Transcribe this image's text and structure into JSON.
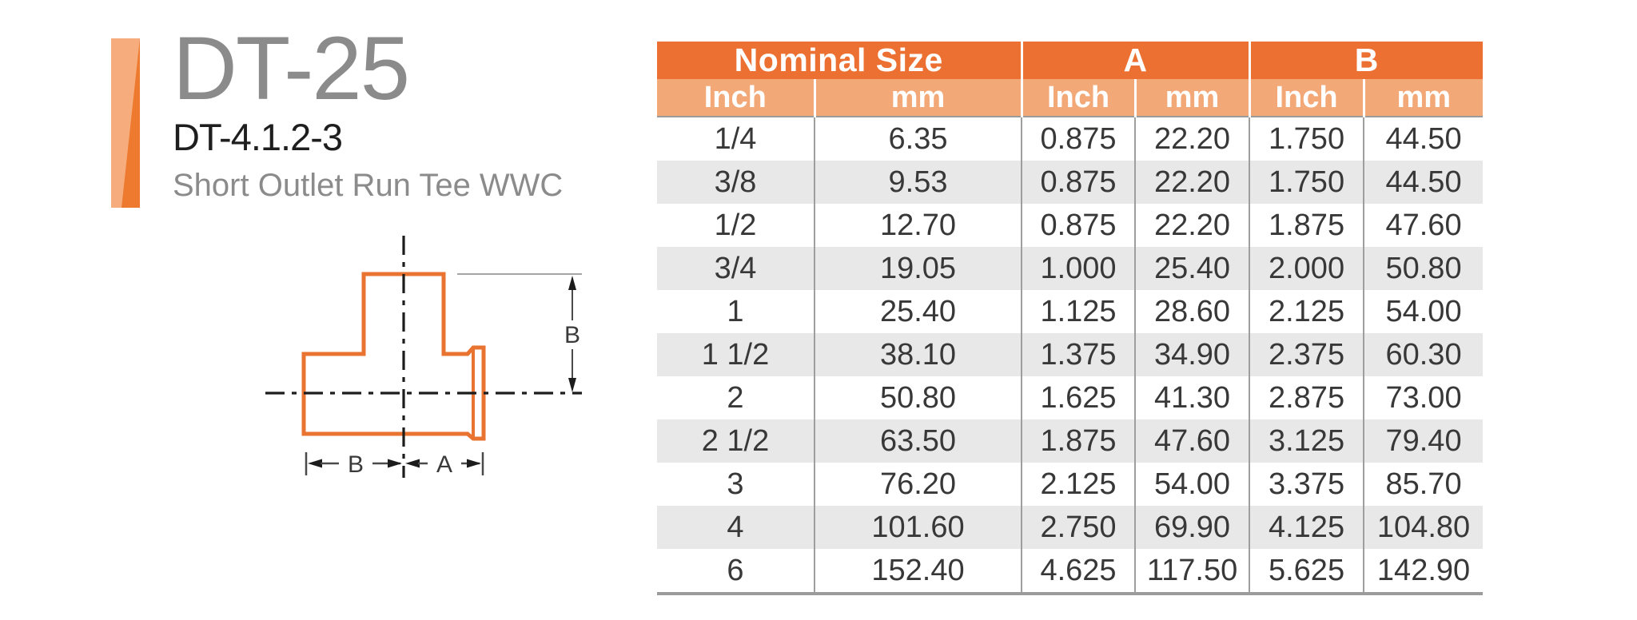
{
  "header": {
    "model": "DT-25",
    "part_number": "DT-4.1.2-3",
    "description": "Short Outlet Run Tee WWC"
  },
  "diagram": {
    "labels": {
      "dim_b_vertical": "B",
      "dim_b_horizontal": "B",
      "dim_a_horizontal": "A"
    }
  },
  "table": {
    "group_headers": [
      {
        "label": "Nominal Size"
      },
      {
        "label": "A"
      },
      {
        "label": "B"
      }
    ],
    "unit_headers": [
      "Inch",
      "mm",
      "Inch",
      "mm",
      "Inch",
      "mm"
    ],
    "rows": [
      [
        "1/4",
        "6.35",
        "0.875",
        "22.20",
        "1.750",
        "44.50"
      ],
      [
        "3/8",
        "9.53",
        "0.875",
        "22.20",
        "1.750",
        "44.50"
      ],
      [
        "1/2",
        "12.70",
        "0.875",
        "22.20",
        "1.875",
        "47.60"
      ],
      [
        "3/4",
        "19.05",
        "1.000",
        "25.40",
        "2.000",
        "50.80"
      ],
      [
        "1",
        "25.40",
        "1.125",
        "28.60",
        "2.125",
        "54.00"
      ],
      [
        "1 1/2",
        "38.10",
        "1.375",
        "34.90",
        "2.375",
        "60.30"
      ],
      [
        "2",
        "50.80",
        "1.625",
        "41.30",
        "2.875",
        "73.00"
      ],
      [
        "2 1/2",
        "63.50",
        "1.875",
        "47.60",
        "3.125",
        "79.40"
      ],
      [
        "3",
        "76.20",
        "2.125",
        "54.00",
        "3.375",
        "85.70"
      ],
      [
        "4",
        "101.60",
        "2.750",
        "69.90",
        "4.125",
        "104.80"
      ],
      [
        "6",
        "152.40",
        "4.625",
        "117.50",
        "5.625",
        "142.90"
      ]
    ]
  },
  "colors": {
    "accent_orange": "#EC7031",
    "accent_orange_light": "#F3A878",
    "brand_bar_light": "#F6AC7C",
    "brand_bar_dark": "#ED7A2F",
    "diagram_orange": "#E97431",
    "row_stripe_gray": "#E8E8E8",
    "title_gray": "#8B8B8B",
    "body_text": "#383838"
  }
}
